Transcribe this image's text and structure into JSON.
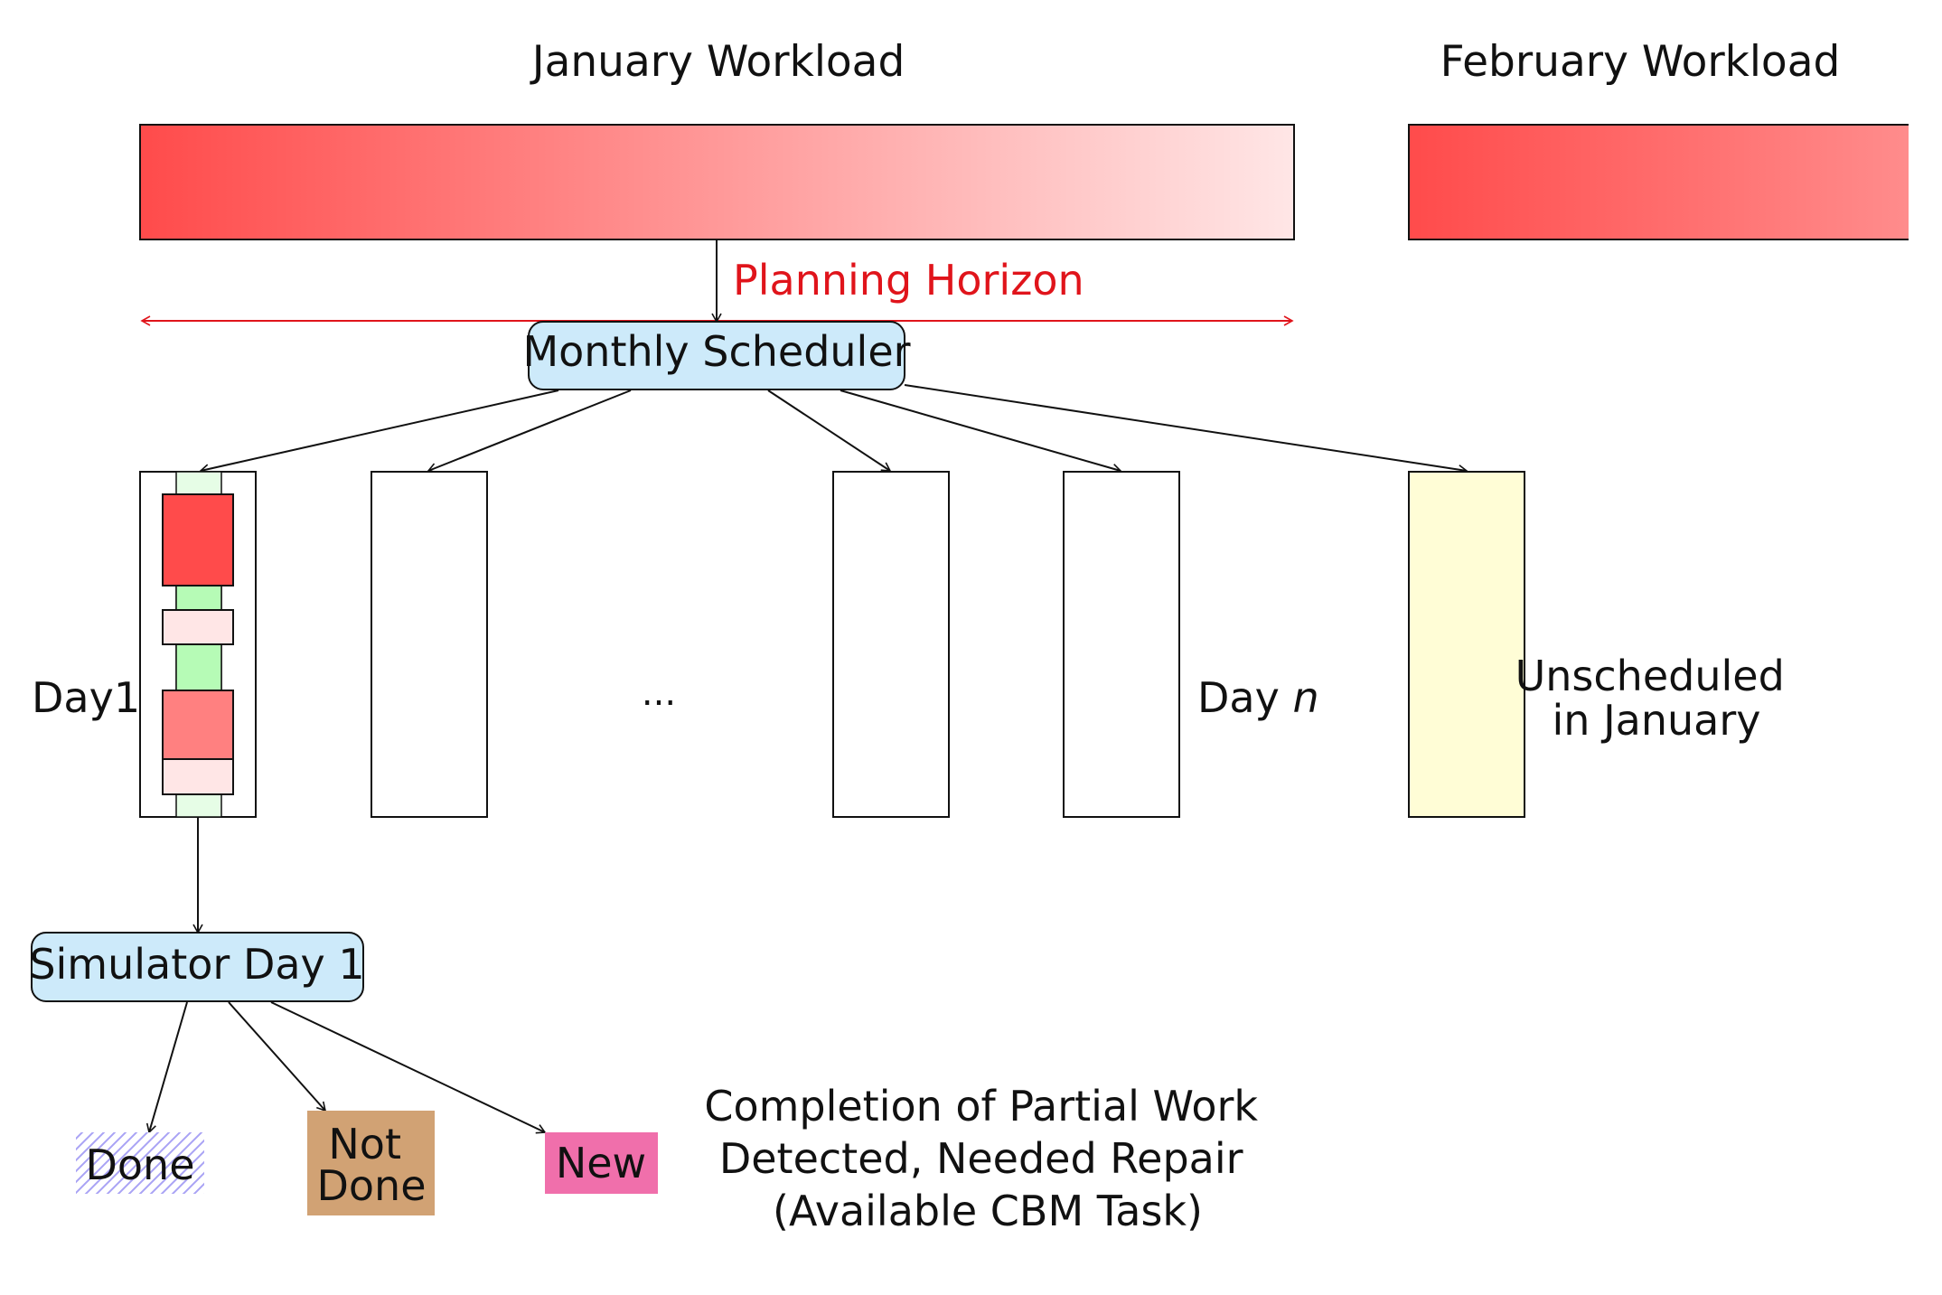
{
  "workloads": {
    "january": {
      "title": "January Workload"
    },
    "february": {
      "title": "February Workload"
    }
  },
  "planning_horizon": {
    "label": "Planning Horizon"
  },
  "monthly_scheduler": {
    "label": "Monthly Scheduler"
  },
  "days": {
    "first_label": "Day1",
    "ellipsis": "...",
    "last_label_prefix": "Day",
    "last_label_var": "n"
  },
  "unscheduled": {
    "line1": "Unscheduled",
    "line2": "in January"
  },
  "simulator": {
    "label": "Simulator Day 1"
  },
  "outcomes": {
    "done": "Done",
    "not_done_line1": "Not",
    "not_done_line2": "Done",
    "new": "New"
  },
  "legend": {
    "line1": "Completion of Partial Work",
    "line2": "Detected, Needed Repair",
    "line3": "(Available CBM Task)"
  },
  "colors": {
    "workload_strong": "#ff4b4b",
    "workload_light": "#ffe6e6",
    "planning_horizon": "#e0141b",
    "node_fill": "#cdeafa",
    "unscheduled_fill": "#fffdd6",
    "day_gap": "#b6fbb6",
    "not_done": "#d1a274",
    "new": "#f06fab",
    "done_hatch": "#a9a3f5"
  }
}
